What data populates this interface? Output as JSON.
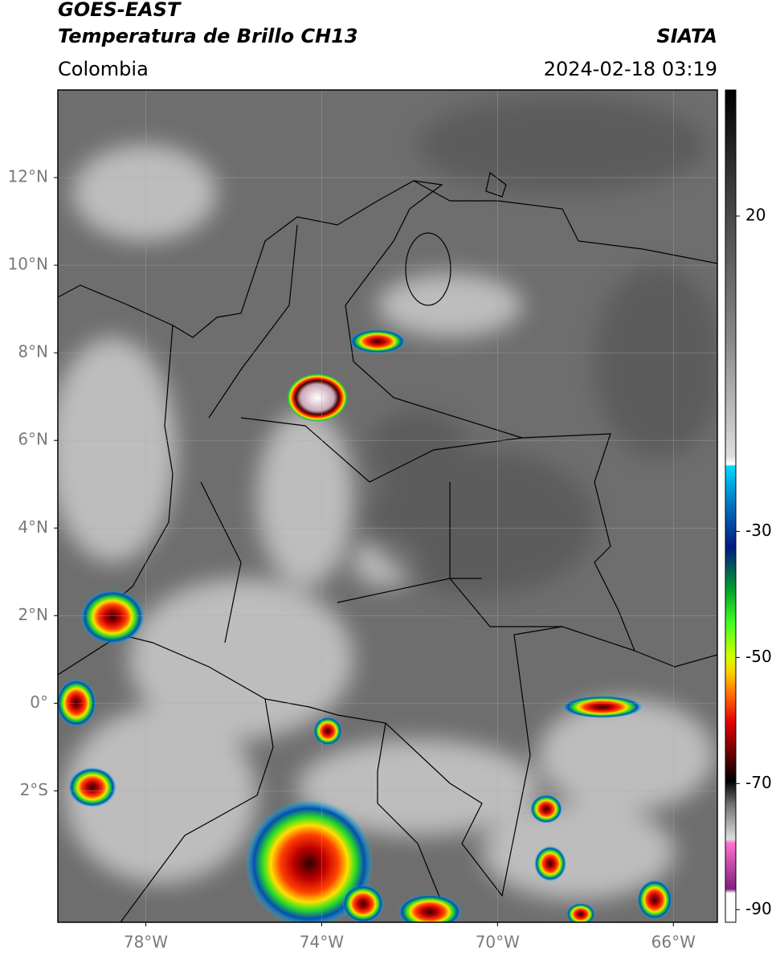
{
  "map": {
    "title": "GOES-EAST",
    "subtitle": "Temperatura de Brillo CH13",
    "source": "SIATA",
    "region": "Colombia",
    "datetime": "2024-02-18 03:19",
    "lonlim": [
      -80,
      -65
    ],
    "latlim": [
      -5,
      14
    ],
    "lon_ticks": [
      {
        "value": -78,
        "label": "78°W"
      },
      {
        "value": -74,
        "label": "74°W"
      },
      {
        "value": -70,
        "label": "70°W"
      },
      {
        "value": -66,
        "label": "66°W"
      }
    ],
    "lat_ticks": [
      {
        "value": 12,
        "label": "12°N"
      },
      {
        "value": 10,
        "label": "10°N"
      },
      {
        "value": 8,
        "label": "8°N"
      },
      {
        "value": 6,
        "label": "6°N"
      },
      {
        "value": 4,
        "label": "4°N"
      },
      {
        "value": 2,
        "label": "2°N"
      },
      {
        "value": 0,
        "label": "0°"
      },
      {
        "value": -2,
        "label": "2°S"
      }
    ],
    "colorbar": {
      "lim": [
        -92,
        40
      ],
      "ticks": [
        20,
        -30,
        -50,
        -70,
        -90
      ]
    }
  }
}
